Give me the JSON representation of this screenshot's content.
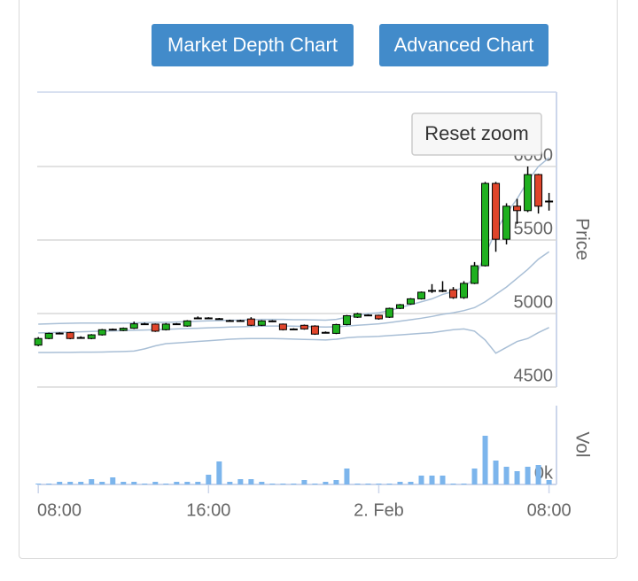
{
  "buttons": [
    "Market Depth Chart",
    "Advanced Chart"
  ],
  "chart_data": {
    "type": "candlestick",
    "reset_zoom": "Reset zoom",
    "y_axis_label": "Price",
    "x": [
      8,
      8.5,
      9,
      9.5,
      10,
      10.5,
      11,
      11.5,
      12,
      12.5,
      13,
      13.5,
      14,
      14.5,
      15,
      15.5,
      16,
      16.5,
      17,
      17.5,
      18,
      18.5,
      19,
      19.5,
      20,
      20.5,
      21,
      21.5,
      22,
      22.5,
      23,
      23.5,
      24,
      24.5,
      25,
      25.5,
      26,
      26.5,
      27,
      27.5,
      28,
      28.5,
      29,
      29.5,
      30,
      30.5,
      31,
      31.5,
      32
    ],
    "xlim": [
      7.95,
      32.35
    ],
    "xticks": [
      {
        "value": 8,
        "label": "08:00"
      },
      {
        "value": 16,
        "label": "16:00"
      },
      {
        "value": 24,
        "label": "2. Feb"
      },
      {
        "value": 32,
        "label": "08:00"
      }
    ],
    "open": [
      4785,
      4830,
      4865,
      4870,
      4835,
      4830,
      4855,
      4890,
      4885,
      4900,
      4928,
      4928,
      4890,
      4928,
      4915,
      4968,
      4970,
      4965,
      4952,
      4950,
      4963,
      4920,
      4950,
      4928,
      4895,
      4920,
      4915,
      4872,
      4865,
      4925,
      4975,
      4988,
      4988,
      4975,
      5035,
      5065,
      5100,
      5155,
      5155,
      5162,
      5108,
      5205,
      5325,
      5885,
      5505,
      5730,
      5700,
      5945,
      5765
    ],
    "high": [
      4840,
      4870,
      4872,
      4875,
      4845,
      4860,
      4895,
      4898,
      4905,
      4945,
      4937,
      4932,
      4935,
      4935,
      4955,
      4980,
      4975,
      4970,
      4958,
      4958,
      4975,
      4955,
      4955,
      4932,
      4900,
      4925,
      4920,
      4878,
      4930,
      4990,
      5005,
      4995,
      4992,
      5040,
      5065,
      5105,
      5150,
      5200,
      5220,
      5180,
      5220,
      5350,
      5895,
      5895,
      5750,
      5780,
      6000,
      5950,
      5820
    ],
    "low": [
      4778,
      4825,
      4858,
      4825,
      4828,
      4825,
      4850,
      4885,
      4880,
      4895,
      4922,
      4875,
      4885,
      4922,
      4910,
      4962,
      4962,
      4958,
      4945,
      4945,
      4915,
      4915,
      4942,
      4885,
      4888,
      4890,
      4855,
      4865,
      4860,
      4920,
      4970,
      4982,
      4958,
      4970,
      5030,
      5060,
      5095,
      5140,
      5145,
      5100,
      5100,
      5200,
      5320,
      5420,
      5470,
      5610,
      5690,
      5680,
      5700
    ],
    "close": [
      4830,
      4865,
      4867,
      4830,
      4837,
      4855,
      4890,
      4893,
      4900,
      4930,
      4930,
      4880,
      4928,
      4930,
      4950,
      4970,
      4968,
      4963,
      4950,
      4952,
      4920,
      4950,
      4948,
      4890,
      4893,
      4895,
      4860,
      4870,
      4925,
      4985,
      4998,
      4990,
      4964,
      5035,
      5060,
      5100,
      5145,
      5157,
      5157,
      5108,
      5205,
      5325,
      5885,
      5505,
      5730,
      5700,
      5945,
      5730,
      5762
    ],
    "up_color": "#1fb01f",
    "down_color": "#e0452b",
    "bands": [
      {
        "color": "#a9bfd6",
        "values": [
          4928,
          4930,
          4932,
          4934,
          4935,
          4935,
          4935,
          4935,
          4935,
          4936,
          4938,
          4940,
          4940,
          4942,
          4945,
          4948,
          4950,
          4952,
          4955,
          4955,
          4958,
          4960,
          4960,
          4960,
          4958,
          4958,
          4956,
          4955,
          4960,
          4975,
          4990,
          5000,
          5005,
          5020,
          5040,
          5060,
          5080,
          5100,
          5130,
          5150,
          5180,
          5240,
          5400,
          5560,
          5680,
          5780,
          5900,
          6000,
          6060
        ]
      },
      {
        "color": "#a9bfd6",
        "values": [
          4868,
          4870,
          4872,
          4874,
          4876,
          4878,
          4880,
          4882,
          4884,
          4886,
          4888,
          4890,
          4892,
          4895,
          4898,
          4900,
          4903,
          4905,
          4908,
          4910,
          4912,
          4914,
          4915,
          4915,
          4914,
          4912,
          4910,
          4908,
          4910,
          4915,
          4920,
          4925,
          4930,
          4938,
          4948,
          4958,
          4968,
          4980,
          4995,
          5005,
          5020,
          5040,
          5080,
          5130,
          5180,
          5240,
          5300,
          5370,
          5420
        ]
      },
      {
        "color": "#a9bfd6",
        "values": [
          4735,
          4735,
          4736,
          4736,
          4737,
          4737,
          4738,
          4740,
          4742,
          4745,
          4760,
          4780,
          4795,
          4800,
          4805,
          4810,
          4815,
          4820,
          4825,
          4828,
          4830,
          4830,
          4830,
          4828,
          4826,
          4824,
          4822,
          4820,
          4825,
          4835,
          4840,
          4842,
          4845,
          4850,
          4855,
          4860,
          4865,
          4870,
          4880,
          4890,
          4895,
          4880,
          4820,
          4730,
          4770,
          4810,
          4830,
          4870,
          4905
        ]
      }
    ],
    "ylim": [
      4500,
      6506
    ],
    "yticks": [
      4500,
      5000,
      5500,
      6000
    ],
    "grid": true,
    "volume": {
      "type": "bar",
      "y_axis_label": "Vol",
      "color": "#7cb5ec",
      "values": [
        1,
        1,
        3,
        3,
        3,
        6,
        3,
        8,
        3,
        3,
        1,
        3,
        1,
        3,
        3,
        3,
        11,
        26,
        3,
        6,
        6,
        3,
        1,
        1,
        1,
        5,
        1,
        3,
        5,
        18,
        1,
        1,
        1,
        1,
        3,
        3,
        10,
        10,
        10,
        1,
        1,
        18,
        55,
        27,
        20,
        15,
        20,
        22,
        5
      ],
      "ylim": [
        0,
        89
      ],
      "yticks": [
        {
          "value": 0,
          "label": "0k"
        }
      ]
    }
  }
}
